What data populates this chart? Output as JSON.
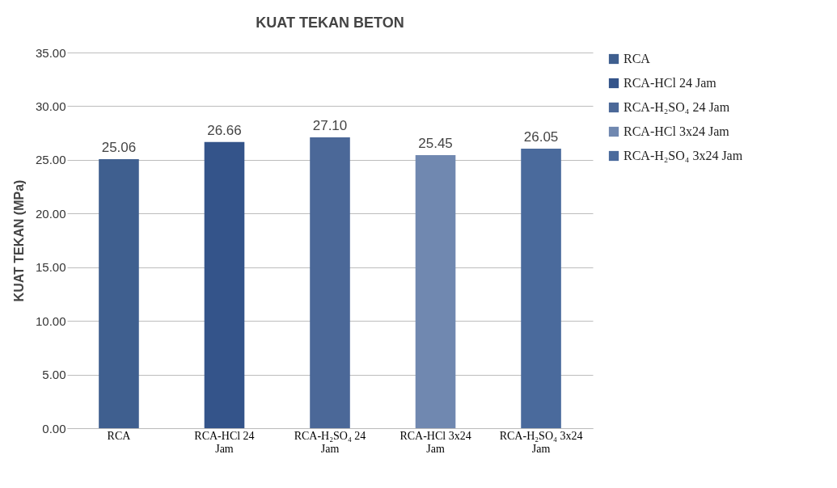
{
  "chart_data": {
    "type": "bar",
    "title": "KUAT TEKAN BETON",
    "ylabel": "KUAT TEKAN (MPa)",
    "categories": [
      "RCA",
      "RCA-HCl 24 Jam",
      "RCA-H₂SO₄ 24 Jam",
      "RCA-HCl 3x24 Jam",
      "RCA-H₂SO₄ 3x24 Jam"
    ],
    "series": [
      {
        "name": "RCA",
        "color": "#3f5f8f",
        "values": [
          25.06,
          null,
          null,
          null,
          null
        ],
        "value_labels": [
          "25.06",
          null,
          null,
          null,
          null
        ]
      },
      {
        "name": "RCA-HCl 24 Jam",
        "color": "#34548a",
        "values": [
          null,
          26.66,
          null,
          null,
          null
        ],
        "value_labels": [
          null,
          "26.66",
          null,
          null,
          null
        ]
      },
      {
        "name": "RCA-H₂SO₄ 24 Jam",
        "color": "#4b6898",
        "values": [
          null,
          null,
          27.1,
          null,
          null
        ],
        "value_labels": [
          null,
          null,
          "27.10",
          null,
          null
        ]
      },
      {
        "name": "RCA-HCl 3x24 Jam",
        "color": "#7088b0",
        "values": [
          null,
          null,
          null,
          25.45,
          null
        ],
        "value_labels": [
          null,
          null,
          null,
          "25.45",
          null
        ]
      },
      {
        "name": "RCA-H₂SO₄ 3x24 Jam",
        "color": "#4a6a9c",
        "values": [
          null,
          null,
          null,
          null,
          26.05
        ],
        "value_labels": [
          null,
          null,
          null,
          null,
          "26.05"
        ]
      }
    ],
    "ylim": [
      0,
      35
    ],
    "yticks": [
      {
        "value": 0,
        "label": "0.00"
      },
      {
        "value": 5,
        "label": "5.00"
      },
      {
        "value": 10,
        "label": "10.00"
      },
      {
        "value": 15,
        "label": "15.00"
      },
      {
        "value": 20,
        "label": "20.00"
      },
      {
        "value": 25,
        "label": "25.00"
      },
      {
        "value": 30,
        "label": "30.00"
      },
      {
        "value": 35,
        "label": "35.00"
      }
    ],
    "grid": "y",
    "legend": "right"
  }
}
